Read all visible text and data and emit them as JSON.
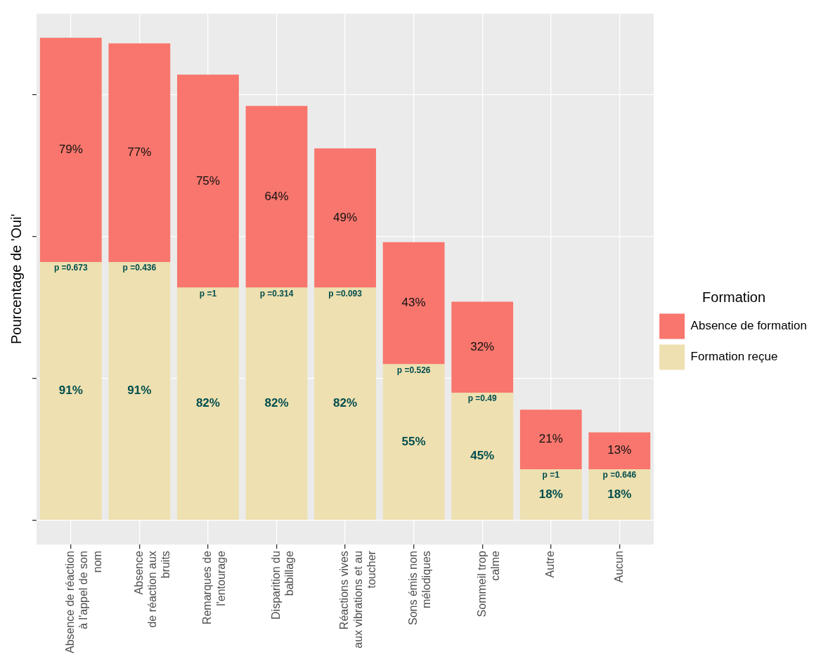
{
  "chart_data": {
    "type": "bar",
    "stacked": true,
    "ylabel": "Pourcentage de 'Oui'",
    "legend_title": "Formation",
    "legend": "right",
    "grid": true,
    "tick_labels": "x",
    "categories": [
      "Absence de réaction\nà l'appel de son\nnom",
      "Absence\nde réaction aux\nbruits",
      "Remarques de\nl'entourage",
      "Disparition du\nbabillage",
      "Réactions vives\naux vibrations et au\ntoucher",
      "Sons émis non\nmélodiques",
      "Sommeil trop\ncalme",
      "Autre",
      "Aucun"
    ],
    "series": [
      {
        "name": "Formation reçue",
        "color": "#eee0b0",
        "values": [
          91,
          91,
          82,
          82,
          82,
          55,
          45,
          18,
          18
        ],
        "value_labels": [
          "91%",
          "91%",
          "82%",
          "82%",
          "82%",
          "55%",
          "45%",
          "18%",
          "18%"
        ]
      },
      {
        "name": "Absence de formation",
        "color": "#f8766d",
        "values": [
          79,
          77,
          75,
          64,
          49,
          43,
          32,
          21,
          13
        ],
        "value_labels": [
          "79%",
          "77%",
          "75%",
          "64%",
          "49%",
          "43%",
          "32%",
          "21%",
          "13%"
        ]
      }
    ],
    "ylim": [
      -8.5,
      178.5
    ],
    "yticks": [
      {
        "value": 0,
        "label": null
      },
      {
        "value": 50,
        "label": null
      },
      {
        "value": 100,
        "label": null
      },
      {
        "value": 150,
        "label": null
      }
    ],
    "annotations": [
      {
        "text": "p =0.673",
        "x": "Absence de réaction\nà l'appel de son\nnom",
        "y": 91
      },
      {
        "text": "p =0.436",
        "x": "Absence\nde réaction aux\nbruits",
        "y": 91
      },
      {
        "text": "p =1",
        "x": "Remarques de\nl'entourage",
        "y": 82
      },
      {
        "text": "p =0.314",
        "x": "Disparition du\nbabillage",
        "y": 82
      },
      {
        "text": "p =0.093",
        "x": "Réactions vives\naux vibrations et au\ntoucher",
        "y": 82
      },
      {
        "text": "p =0.526",
        "x": "Sons émis non\nmélodiques",
        "y": 55
      },
      {
        "text": "p =0.49",
        "x": "Sommeil trop\ncalme",
        "y": 45
      },
      {
        "text": "p =1",
        "x": "Autre",
        "y": 18
      },
      {
        "text": "p =0.646",
        "x": "Aucun",
        "y": 18
      }
    ]
  }
}
